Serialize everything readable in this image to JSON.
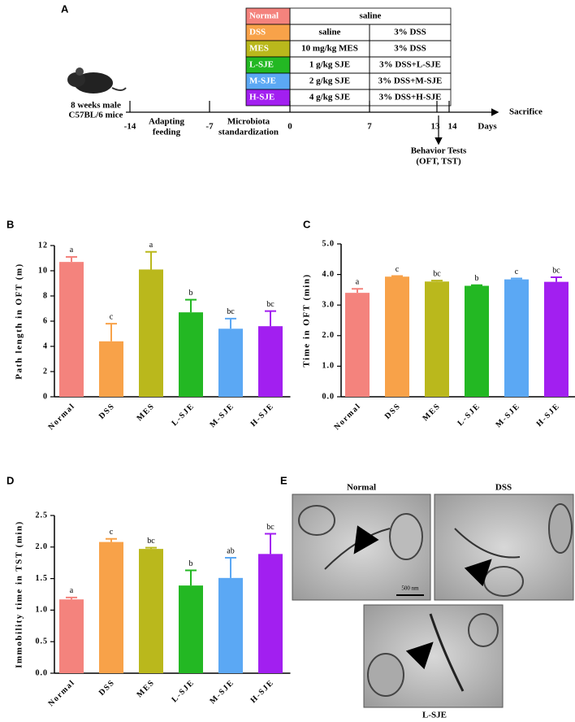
{
  "panel_a": {
    "label": "A",
    "groups": [
      "Normal",
      "DSS",
      "MES",
      "L-SJE",
      "M-SJE",
      "H-SJE"
    ],
    "colors": [
      "#f4837d",
      "#f8a249",
      "#bab81c",
      "#23b823",
      "#5ba8f4",
      "#a21ff0"
    ],
    "header": "saline",
    "rows": [
      [
        "saline",
        "3% DSS"
      ],
      [
        "10 mg/kg MES",
        "3% DSS"
      ],
      [
        "1 g/kg SJE",
        "3% DSS+L-SJE"
      ],
      [
        "2 g/kg SJE",
        "3% DSS+M-SJE"
      ],
      [
        "4 g/kg SJE",
        "3% DSS+H-SJE"
      ]
    ],
    "mouse": [
      "8 weeks male",
      "C57BL/6 mice"
    ],
    "days": [
      "-14",
      "-7",
      "0",
      "7",
      "13",
      "14"
    ],
    "unit": "Days",
    "end": "Sacrifice",
    "phases": [
      [
        "Adapting",
        "feeding"
      ],
      [
        "Microbiota",
        "standardization"
      ]
    ],
    "test": [
      "Behavior Tests",
      "(OFT, TST)"
    ]
  },
  "chart_data": [
    {
      "type": "bar",
      "panel": "B",
      "y_label": "Path length in OFT (m)",
      "categories": [
        "Normal",
        "DSS",
        "MES",
        "L-SJE",
        "M-SJE",
        "H-SJE"
      ],
      "values": [
        10.7,
        4.4,
        10.1,
        6.7,
        5.4,
        5.6
      ],
      "errors": [
        0.4,
        1.4,
        1.4,
        1.0,
        0.8,
        1.2
      ],
      "letters": [
        "a",
        "c",
        "a",
        "b",
        "bc",
        "bc"
      ],
      "colors": [
        "#f4837d",
        "#f8a249",
        "#bab81c",
        "#23b823",
        "#5ba8f4",
        "#a21ff0"
      ],
      "ylim": [
        0,
        12
      ],
      "yticks": [
        0,
        2,
        4,
        6,
        8,
        10,
        12
      ],
      "grid": false
    },
    {
      "type": "bar",
      "panel": "C",
      "y_label": "Time in OFT (min)",
      "categories": [
        "Normal",
        "DSS",
        "MES",
        "L-SJE",
        "M-SJE",
        "H-SJE"
      ],
      "values": [
        3.4,
        3.93,
        3.77,
        3.63,
        3.84,
        3.76
      ],
      "errors": [
        0.13,
        0.02,
        0.03,
        0.02,
        0.03,
        0.15
      ],
      "letters": [
        "a",
        "c",
        "bc",
        "b",
        "c",
        "bc"
      ],
      "colors": [
        "#f4837d",
        "#f8a249",
        "#bab81c",
        "#23b823",
        "#5ba8f4",
        "#a21ff0"
      ],
      "ylim": [
        0,
        5
      ],
      "yticks": [
        {
          "value": 0,
          "label": "0.0"
        },
        {
          "value": 1,
          "label": "1.0"
        },
        {
          "value": 2,
          "label": "2.0"
        },
        {
          "value": 3,
          "label": "3.0"
        },
        {
          "value": 4,
          "label": "4.0"
        },
        {
          "value": 5,
          "label": "5.0"
        }
      ],
      "grid": false
    },
    {
      "type": "bar",
      "panel": "D",
      "y_label": "Immobility time in TST (min)",
      "categories": [
        "Normal",
        "DSS",
        "MES",
        "L-SJE",
        "M-SJE",
        "H-SJE"
      ],
      "values": [
        1.17,
        2.08,
        1.97,
        1.39,
        1.51,
        1.89
      ],
      "errors": [
        0.03,
        0.05,
        0.02,
        0.24,
        0.32,
        0.32
      ],
      "letters": [
        "a",
        "c",
        "bc",
        "b",
        "ab",
        "bc"
      ],
      "colors": [
        "#f4837d",
        "#f8a249",
        "#bab81c",
        "#23b823",
        "#5ba8f4",
        "#a21ff0"
      ],
      "ylim": [
        0,
        2.5
      ],
      "yticks": [
        {
          "value": 0,
          "label": "0.0"
        },
        {
          "value": 0.5,
          "label": "0.5"
        },
        {
          "value": 1,
          "label": "1.0"
        },
        {
          "value": 1.5,
          "label": "1.5"
        },
        {
          "value": 2,
          "label": "2.0"
        },
        {
          "value": 2.5,
          "label": "2.5"
        }
      ],
      "grid": false
    }
  ],
  "panel_e": {
    "label": "E",
    "images": [
      "Normal",
      "DSS",
      "L-SJE"
    ],
    "scale": "500 nm"
  }
}
